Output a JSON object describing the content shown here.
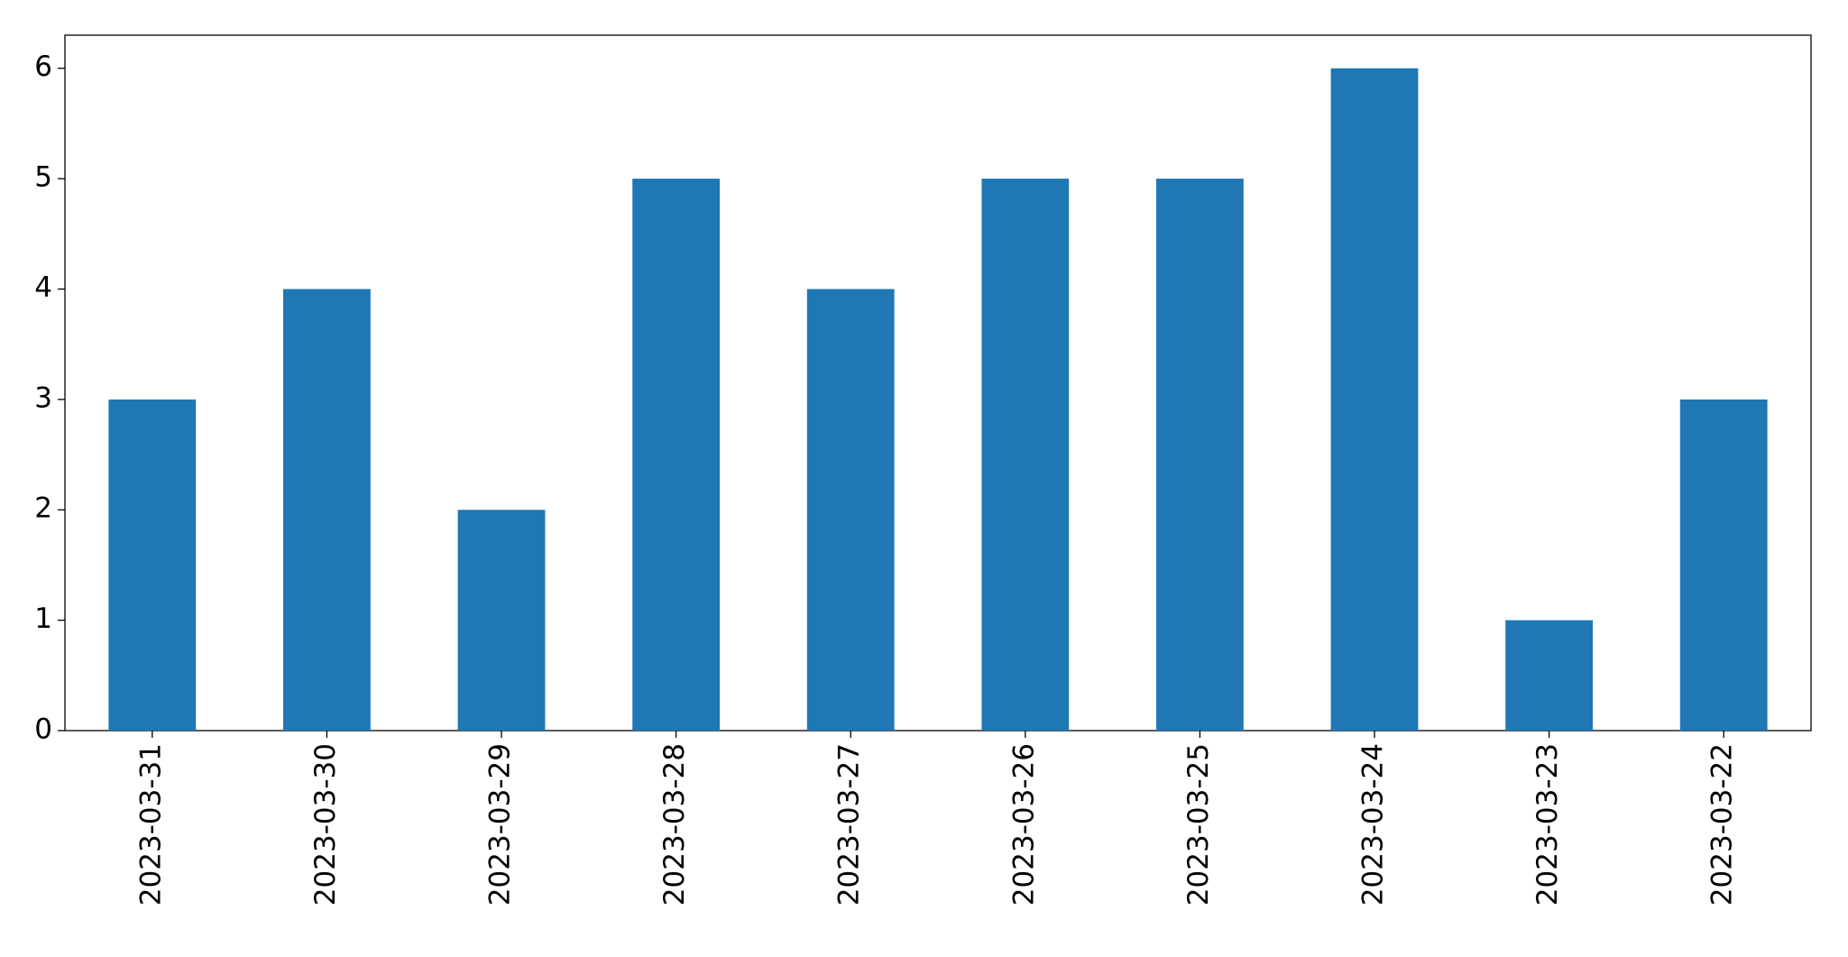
{
  "chart_data": {
    "type": "bar",
    "categories": [
      "2023-03-31",
      "2023-03-30",
      "2023-03-29",
      "2023-03-28",
      "2023-03-27",
      "2023-03-26",
      "2023-03-25",
      "2023-03-24",
      "2023-03-23",
      "2023-03-22"
    ],
    "values": [
      3,
      4,
      2,
      5,
      4,
      5,
      5,
      6,
      1,
      3
    ],
    "color": "#1f77b4",
    "ylim": [
      0,
      6.3
    ],
    "yticks": [
      0,
      1,
      2,
      3,
      4,
      5,
      6
    ],
    "grid": false
  }
}
